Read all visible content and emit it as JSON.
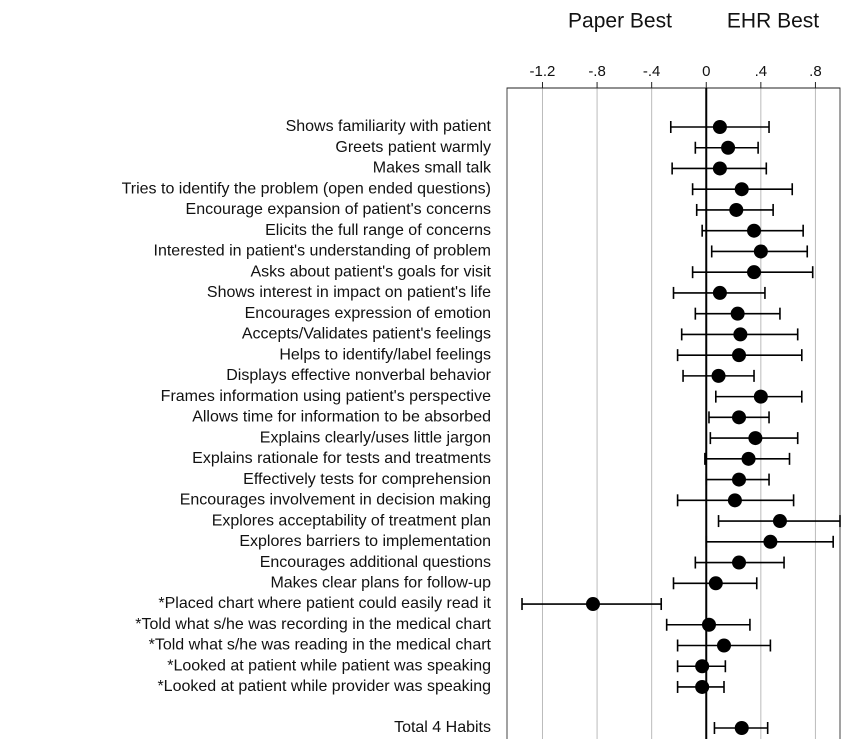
{
  "chart_data": {
    "type": "forest",
    "header_left": "Paper Best",
    "header_right": "EHR Best",
    "categories": [
      "Shows familiarity with patient",
      "Greets patient warmly",
      "Makes small talk",
      "Tries to identify the problem (open ended questions)",
      "Encourage expansion of patient's concerns",
      "Elicits the full range of concerns",
      "Interested in patient's understanding of problem",
      "Asks about patient's goals for visit",
      "Shows interest in impact on patient's life",
      "Encourages expression of emotion",
      "Accepts/Validates patient's feelings",
      "Helps to identify/label feelings",
      "Displays effective nonverbal behavior",
      "Frames information using patient's perspective",
      "Allows time for information to be absorbed",
      "Explains clearly/uses little jargon",
      "Explains rationale for tests and treatments",
      "Effectively tests for comprehension",
      "Encourages involvement in decision making",
      "Explores acceptability of treatment plan",
      "Explores barriers to implementation",
      "Encourages additional questions",
      "Makes clear plans for follow-up",
      "*Placed chart where patient could easily read it",
      "*Told what s/he was recording in the medical chart",
      "*Told what s/he was reading in the medical chart",
      "*Looked at patient while patient was speaking",
      "*Looked at patient while provider was speaking",
      "Total 4 Habits"
    ],
    "values": [
      0.1,
      0.16,
      0.1,
      0.26,
      0.22,
      0.35,
      0.4,
      0.35,
      0.1,
      0.23,
      0.25,
      0.24,
      0.09,
      0.4,
      0.24,
      0.36,
      0.31,
      0.24,
      0.21,
      0.54,
      0.47,
      0.24,
      0.07,
      -0.83,
      0.02,
      0.13,
      -0.03,
      -0.03,
      0.26
    ],
    "lower": [
      -0.26,
      -0.08,
      -0.25,
      -0.1,
      -0.07,
      -0.03,
      0.04,
      -0.1,
      -0.24,
      -0.08,
      -0.18,
      -0.21,
      -0.17,
      0.07,
      0.02,
      0.03,
      -0.01,
      0.0,
      -0.21,
      0.09,
      0.0,
      -0.08,
      -0.24,
      -1.35,
      -0.29,
      -0.21,
      -0.21,
      -0.21,
      0.06
    ],
    "upper": [
      0.46,
      0.38,
      0.44,
      0.63,
      0.49,
      0.71,
      0.74,
      0.78,
      0.43,
      0.54,
      0.67,
      0.7,
      0.35,
      0.7,
      0.46,
      0.67,
      0.61,
      0.46,
      0.64,
      0.98,
      0.93,
      0.57,
      0.37,
      -0.33,
      0.32,
      0.47,
      0.14,
      0.13,
      0.45
    ],
    "color": "#000000",
    "xlim": [
      -1.46,
      0.98
    ],
    "xticks": [
      {
        "value": -1.2,
        "label": "-1.2"
      },
      {
        "value": -0.8,
        "label": "-.8"
      },
      {
        "value": -0.4,
        "label": "-.4"
      },
      0,
      {
        "value": 0.4,
        "label": ".4"
      },
      {
        "value": 0.8,
        "label": ".8"
      }
    ],
    "grid": true
  }
}
